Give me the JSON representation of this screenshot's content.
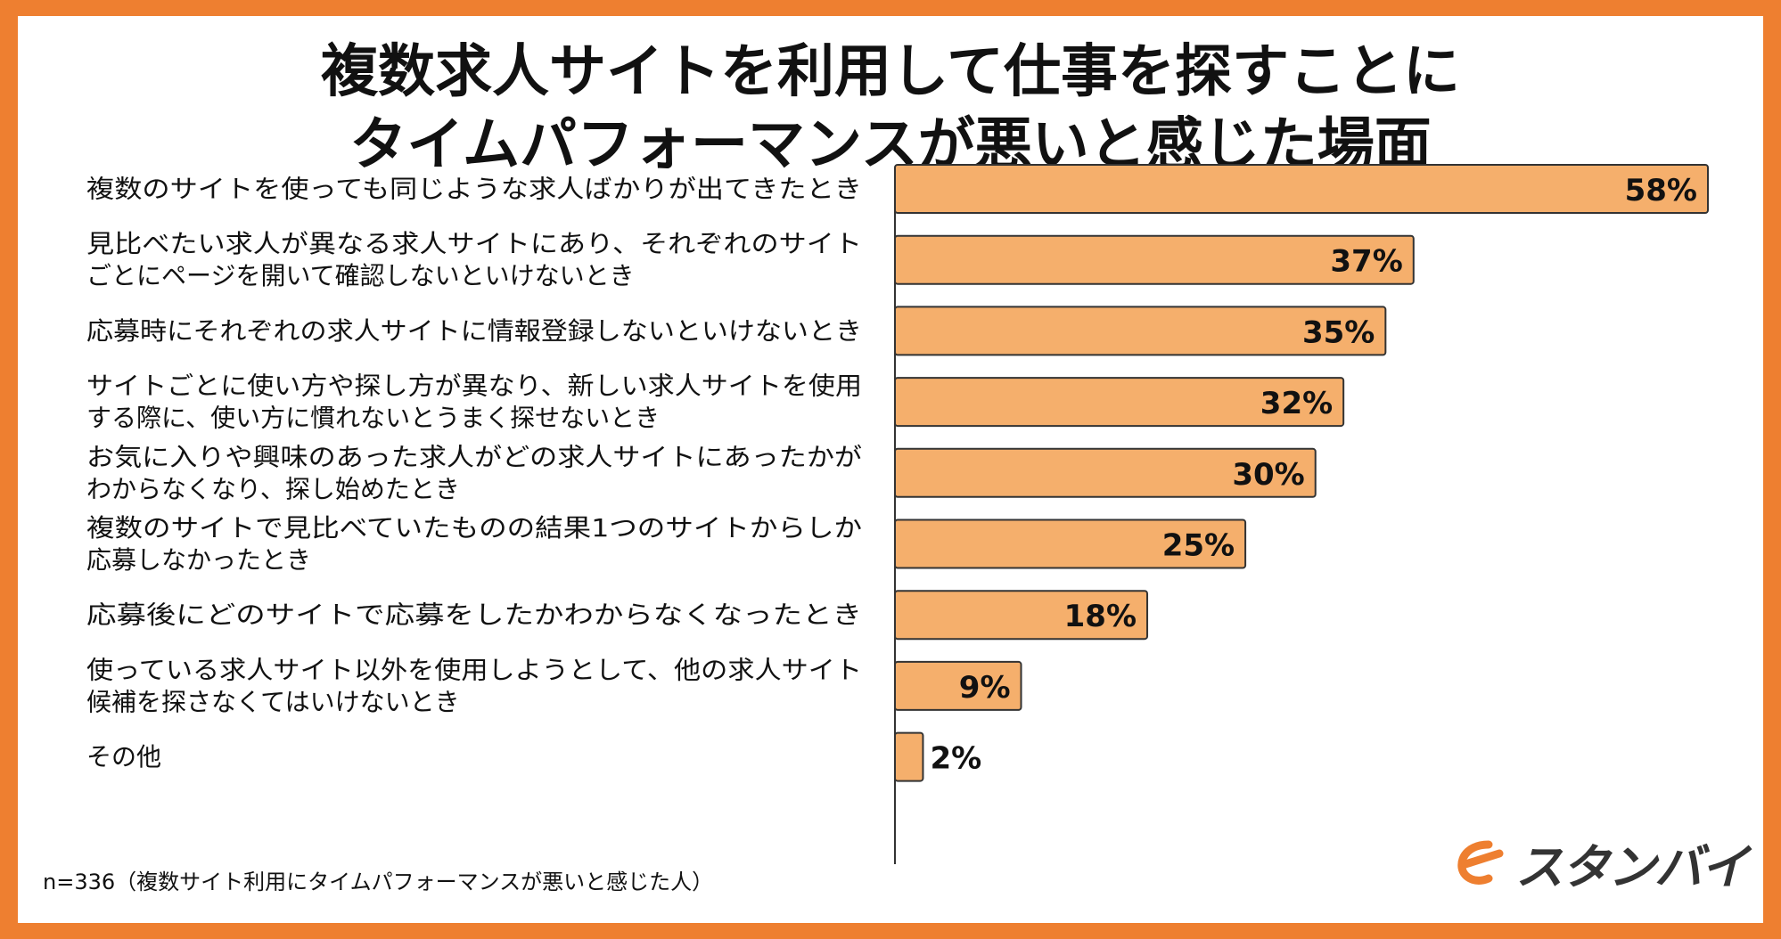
{
  "title_lines": [
    "複数求人サイトを利用して仕事を探すことに",
    "タイムパフォーマンスが悪いと感じた場面"
  ],
  "note": "n=336（複数サイト利用にタイムパフォーマンスが悪いと感じた人）",
  "logo": {
    "text": "スタンバイ",
    "icon": "stanby-logo-icon",
    "color": "#EE7F30"
  },
  "colors": {
    "frame": "#EE7F30",
    "bar": "#F5AF6C",
    "bar_stroke": "#333333"
  },
  "chart_data": {
    "type": "bar",
    "orientation": "horizontal",
    "categories": [
      [
        "複数のサイトを使っても同じような求人ばかりが出てきたとき"
      ],
      [
        "見比べたい求人が異なる求人サイトにあり、それぞれのサイト",
        "ごとにページを開いて確認しないといけないとき"
      ],
      [
        "応募時にそれぞれの求人サイトに情報登録しないといけないとき"
      ],
      [
        "サイトごとに使い方や探し方が異なり、新しい求人サイトを使用",
        "する際に、使い方に慣れないとうまく探せないとき"
      ],
      [
        "お気に入りや興味のあった求人がどの求人サイトにあったかが",
        "わからなくなり、探し始めたとき"
      ],
      [
        "複数のサイトで見比べていたものの結果1つのサイトからしか",
        "応募しなかったとき"
      ],
      [
        "応募後にどのサイトで応募をしたかわからなくなったとき"
      ],
      [
        "使っている求人サイト以外を使用しようとして、他の求人サイト",
        "候補を探さなくてはいけないとき"
      ],
      [
        "その他"
      ]
    ],
    "values": [
      58,
      37,
      35,
      32,
      30,
      25,
      18,
      9,
      2
    ],
    "value_labels": [
      "58%",
      "37%",
      "35%",
      "32%",
      "30%",
      "25%",
      "18%",
      "9%",
      "2%"
    ],
    "unit": "%",
    "xlim": [
      0,
      58
    ],
    "grid": false,
    "legend": "none"
  }
}
